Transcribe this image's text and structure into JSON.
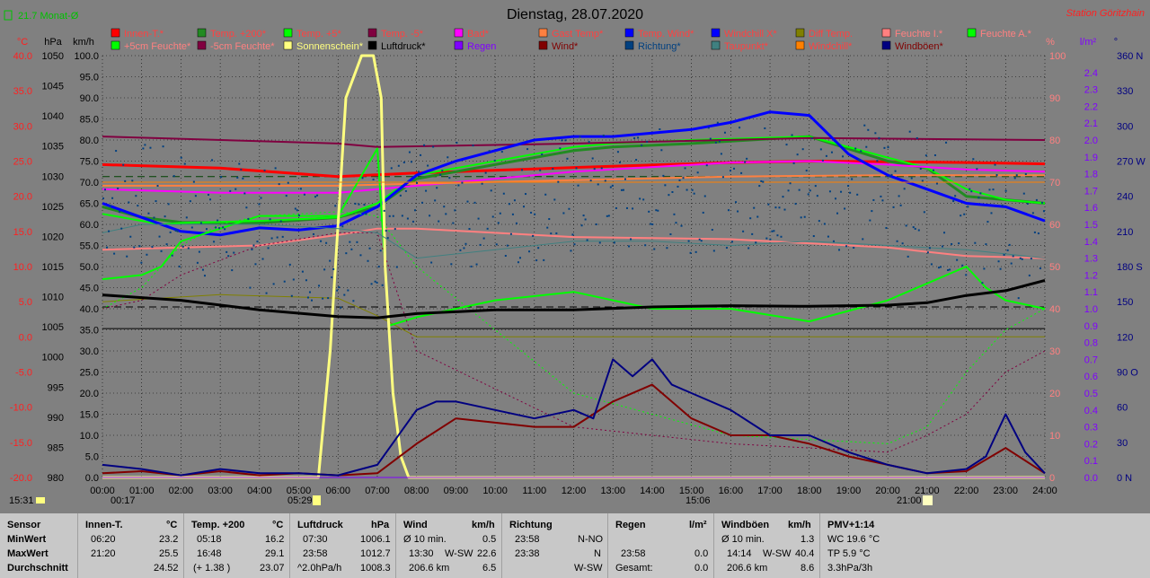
{
  "header": {
    "month_avg": "21.7 Monat-Ø",
    "title": "Dienstag, 28.07.2020",
    "station": "Station Göritzhain"
  },
  "colors": {
    "background": "#808080",
    "innen": "#ff0000",
    "temp200": "#228b22",
    "temp5": "#00ff00",
    "temp_minus5": "#800040",
    "bad": "#ff00ff",
    "gast": "#ff8040",
    "temp_wind": "#0000ff",
    "windchillx": "#0000ff",
    "diff": "#808000",
    "feuchte_i": "#ff8080",
    "feuchte_a": "#00ff00",
    "feuchte5": "#00ff00",
    "feuchte_minus5": "#800040",
    "sonne": "#ffff80",
    "luftdruck": "#000000",
    "regen": "#8000ff",
    "wind": "#800000",
    "richtung": "#004080",
    "taupunkt": "#408080",
    "windchill": "#ff8000",
    "windboeen": "#000080"
  },
  "legend": [
    {
      "label": "Innen-T.*",
      "color": "#ff0000",
      "text_color": "#ff4040"
    },
    {
      "label": "Temp. +200*",
      "color": "#228b22",
      "text_color": "#ff4040"
    },
    {
      "label": "Temp. +5*",
      "color": "#00ff00",
      "text_color": "#ff4040"
    },
    {
      "label": "Temp. -5*",
      "color": "#800040",
      "text_color": "#ff4040"
    },
    {
      "label": "Bad*",
      "color": "#ff00ff",
      "text_color": "#ff4040"
    },
    {
      "label": "Gast Temp*",
      "color": "#ff8040",
      "text_color": "#ff4040"
    },
    {
      "label": "Temp. Wind*",
      "color": "#0000ff",
      "text_color": "#ff4040"
    },
    {
      "label": "Windchill X*",
      "color": "#0000ff",
      "text_color": "#ff4040"
    },
    {
      "label": "Diff Temp.",
      "color": "#808000",
      "text_color": "#ff4040"
    },
    {
      "label": "Feuchte I.*",
      "color": "#ff8080",
      "text_color": "#ff8080"
    },
    {
      "label": "Feuchte A.*",
      "color": "#00ff00",
      "text_color": "#ff8080"
    },
    {
      "label": "+5cm Feuchte*",
      "color": "#00ff00",
      "text_color": "#ff8080"
    },
    {
      "label": "-5cm Feuchte*",
      "color": "#800040",
      "text_color": "#ff8080"
    },
    {
      "label": "Sonnenschein*",
      "color": "#ffff80",
      "text_color": "#ffff80"
    },
    {
      "label": "Luftdruck*",
      "color": "#000000",
      "text_color": "#000000"
    },
    {
      "label": "Regen",
      "color": "#8000ff",
      "text_color": "#8000ff"
    },
    {
      "label": "Wind*",
      "color": "#800000",
      "text_color": "#800000"
    },
    {
      "label": "Richtung*",
      "color": "#004080",
      "text_color": "#004080"
    },
    {
      "label": "Taupunkt*",
      "color": "#408080",
      "text_color": "#ff4040"
    },
    {
      "label": "Windchill*",
      "color": "#ff8000",
      "text_color": "#ff4040"
    },
    {
      "label": "Windböen*",
      "color": "#000080",
      "text_color": "#800000"
    }
  ],
  "chart_data": {
    "type": "line",
    "title": "Dienstag, 28.07.2020",
    "x_ticks": [
      "00:00",
      "01:00",
      "02:00",
      "03:00",
      "04:00",
      "05:00",
      "06:00",
      "07:00",
      "08:00",
      "09:00",
      "10:00",
      "11:00",
      "12:00",
      "13:00",
      "14:00",
      "15:00",
      "16:00",
      "17:00",
      "18:00",
      "19:00",
      "20:00",
      "21:00",
      "22:00",
      "23:00",
      "24:00"
    ],
    "xlim": [
      0,
      24
    ],
    "axes": {
      "temp": {
        "unit": "°C",
        "ylim": [
          -20,
          40
        ],
        "ticks": [
          "40.0",
          "35.0",
          "30.0",
          "25.0",
          "20.0",
          "15.0",
          "10.0",
          "5.0",
          "0.0",
          "-5.0",
          "-10.0",
          "-15.0",
          "-20.0"
        ]
      },
      "hpa": {
        "unit": "hPa",
        "ylim": [
          980,
          1050
        ],
        "ticks": [
          "1050",
          "1045",
          "1040",
          "1035",
          "1030",
          "1025",
          "1020",
          "1015",
          "1010",
          "1005",
          "1000",
          "995",
          "990",
          "985",
          "980"
        ]
      },
      "kmh": {
        "unit": "km/h",
        "ylim": [
          0,
          100
        ],
        "ticks": [
          "100.0",
          "95.0",
          "90.0",
          "85.0",
          "80.0",
          "75.0",
          "70.0",
          "65.0",
          "60.0",
          "55.0",
          "50.0",
          "45.0",
          "40.0",
          "35.0",
          "30.0",
          "25.0",
          "20.0",
          "15.0",
          "10.0",
          "5.0",
          "0.0"
        ]
      },
      "pct": {
        "unit": "%",
        "ylim": [
          0,
          100
        ],
        "ticks": [
          "100",
          "90",
          "80",
          "70",
          "60",
          "50",
          "40",
          "30",
          "20",
          "10",
          "0"
        ]
      },
      "rain": {
        "unit": "l/m²",
        "ylim": [
          0,
          2.5
        ],
        "ticks": [
          "2.4",
          "2.3",
          "2.2",
          "2.1",
          "2.0",
          "1.9",
          "1.8",
          "1.7",
          "1.6",
          "1.5",
          "1.4",
          "1.3",
          "1.2",
          "1.1",
          "1.0",
          "0.9",
          "0.8",
          "0.7",
          "0.6",
          "0.5",
          "0.4",
          "0.3",
          "0.2",
          "0.1",
          "0.0"
        ]
      },
      "dir": {
        "unit": "°",
        "ylim": [
          0,
          360
        ],
        "ticks": [
          "360 N",
          "330",
          "300",
          "270 W",
          "240",
          "210",
          "180 S",
          "150",
          "120",
          "90 O",
          "60",
          "30",
          "0 N"
        ]
      }
    },
    "series": [
      {
        "name": "Innen-T.*",
        "axis": "temp",
        "width": 3,
        "x": [
          0,
          3,
          6,
          8,
          12,
          16,
          18,
          20,
          22,
          24
        ],
        "y": [
          24.5,
          24,
          22.8,
          23.3,
          24.1,
          24.8,
          25.0,
          24.9,
          24.8,
          24.6
        ]
      },
      {
        "name": "Temp. +200*",
        "axis": "temp",
        "width": 3,
        "x": [
          0,
          1,
          2,
          4,
          6,
          7,
          8,
          10,
          12,
          13,
          15,
          18,
          20,
          21,
          22,
          24
        ],
        "y": [
          18.5,
          17,
          16.3,
          16.2,
          17,
          18.5,
          22.5,
          24.5,
          26.5,
          27,
          27.5,
          28.5,
          25,
          24,
          20,
          19
        ]
      },
      {
        "name": "Temp. +5*",
        "axis": "temp",
        "width": 2,
        "x": [
          0,
          1,
          1.5,
          2,
          4,
          6,
          7,
          8,
          10,
          12,
          13,
          15,
          18,
          20,
          21,
          22,
          23,
          24
        ],
        "y": [
          17.5,
          16.5,
          16,
          16.2,
          16.5,
          17,
          19,
          23,
          25,
          27,
          27.5,
          28,
          28.5,
          25.5,
          24,
          21,
          19.5,
          19
        ]
      },
      {
        "name": "Temp. -5*",
        "axis": "temp",
        "width": 2,
        "x": [
          0,
          6,
          7,
          12,
          18,
          24
        ],
        "y": [
          28.5,
          27.5,
          27,
          27.5,
          28.3,
          28.0
        ]
      },
      {
        "name": "Bad*",
        "axis": "temp",
        "width": 2,
        "x": [
          0,
          3,
          6,
          8,
          12,
          16,
          18,
          20,
          22,
          24
        ],
        "y": [
          21,
          20.5,
          20.5,
          21.5,
          23.5,
          24.8,
          25,
          24.5,
          23.8,
          23.5
        ]
      },
      {
        "name": "Gast Temp*",
        "axis": "temp",
        "width": 2,
        "x": [
          0,
          6,
          8,
          12,
          16,
          20,
          24
        ],
        "y": [
          21.5,
          21.5,
          21.8,
          22.3,
          22.8,
          23.0,
          23.0
        ]
      },
      {
        "name": "Temp. Wind*",
        "axis": "temp",
        "width": 3,
        "x": [
          0,
          1,
          2,
          3,
          4,
          5,
          6,
          7,
          8,
          9,
          10,
          11,
          12,
          13,
          14,
          15,
          16,
          17,
          18,
          19,
          20,
          21,
          22,
          23,
          24
        ],
        "y": [
          19,
          17,
          15,
          14.5,
          15.5,
          15.2,
          15.8,
          18.5,
          23,
          25,
          26.5,
          28,
          28.5,
          28.5,
          29,
          29.5,
          30.5,
          32,
          31.5,
          26,
          23,
          21,
          19,
          18.5,
          16.5
        ]
      },
      {
        "name": "Diff Temp.",
        "axis": "temp",
        "width": 1,
        "x": [
          0,
          3,
          6,
          7,
          8,
          24
        ],
        "y": [
          5,
          6,
          5.5,
          3,
          0,
          0
        ]
      },
      {
        "name": "Feuchte I.*",
        "axis": "pct",
        "width": 2,
        "x": [
          0,
          2,
          4,
          6,
          7,
          8,
          10,
          12,
          16,
          20,
          22,
          24
        ],
        "y": [
          54,
          54.5,
          55,
          57.5,
          59,
          59,
          58,
          57,
          56.5,
          54.5,
          52.5,
          52
        ]
      },
      {
        "name": "Feuchte A.*",
        "axis": "pct",
        "width": 2,
        "x": [
          0,
          1,
          1.5,
          2,
          4,
          6,
          7,
          7.3,
          8,
          10,
          12,
          14,
          16,
          18,
          20,
          21,
          22,
          22.5,
          23,
          24
        ],
        "y": [
          47,
          48,
          50,
          56,
          62,
          62,
          78,
          36,
          38,
          42,
          44,
          40,
          40,
          37,
          42,
          46,
          50,
          45,
          42,
          40
        ]
      },
      {
        "name": "+5cm Feuchte*",
        "axis": "pct",
        "width": 1,
        "x": [
          0,
          1,
          2,
          3,
          4,
          6,
          7,
          8,
          12,
          16,
          20,
          21,
          22,
          23,
          24
        ],
        "y": [
          40,
          45,
          55,
          60,
          62,
          63,
          62,
          50,
          20,
          10,
          8,
          12,
          25,
          35,
          40
        ]
      },
      {
        "name": "-5cm Feuchte*",
        "axis": "pct",
        "width": 1,
        "x": [
          0,
          1,
          2,
          4,
          6,
          7,
          8,
          12,
          16,
          20,
          21,
          22,
          23,
          24
        ],
        "y": [
          40,
          42,
          48,
          55,
          58,
          58,
          30,
          12,
          8,
          6,
          10,
          15,
          25,
          30
        ]
      },
      {
        "name": "Sonnenschein*",
        "axis": "kmh",
        "width": 3,
        "x": [
          0,
          5.5,
          5.8,
          6.2,
          6.6,
          6.9,
          7.1,
          7.2,
          7.4,
          7.6,
          7.8,
          24
        ],
        "y": [
          0,
          0,
          30,
          90,
          100,
          100,
          90,
          50,
          20,
          5,
          0,
          0
        ]
      },
      {
        "name": "Luftdruck*",
        "axis": "hpa",
        "width": 3,
        "x": [
          0,
          2,
          4,
          6,
          7,
          8,
          10,
          12,
          14,
          16,
          18,
          20,
          21,
          22,
          23,
          24
        ],
        "y": [
          1010.3,
          1009.4,
          1007.8,
          1006.7,
          1006.5,
          1007.2,
          1007.8,
          1007.8,
          1008.3,
          1008.5,
          1008.4,
          1008.6,
          1009.0,
          1010.2,
          1011,
          1012.7
        ]
      },
      {
        "name": "Regen",
        "axis": "rain",
        "width": 1,
        "x": [
          0,
          24
        ],
        "y": [
          0,
          0
        ]
      },
      {
        "name": "Wind*",
        "axis": "kmh",
        "width": 2,
        "x": [
          0,
          1,
          2,
          3,
          4,
          5,
          6,
          7,
          8,
          9,
          10,
          11,
          12,
          13,
          14,
          15,
          16,
          17,
          18,
          19,
          20,
          21,
          22,
          23,
          24
        ],
        "y": [
          1,
          1.5,
          0.5,
          1.5,
          0.5,
          1,
          0.5,
          1,
          8,
          14,
          13,
          12,
          12,
          18,
          22,
          14,
          10,
          10,
          8,
          5,
          3,
          1,
          1.5,
          7,
          1
        ]
      },
      {
        "name": "Richtung*",
        "axis": "dir",
        "width": 1,
        "x": [
          0,
          6,
          8,
          12,
          16,
          20,
          24
        ],
        "y": [
          240,
          200,
          230,
          240,
          250,
          250,
          200
        ]
      },
      {
        "name": "Taupunkt*",
        "axis": "pct",
        "width": 1,
        "x": [
          0,
          1,
          2,
          4,
          6,
          7,
          8,
          10,
          12,
          14,
          16,
          18,
          20,
          22,
          24
        ],
        "y": [
          58,
          60,
          60,
          60,
          59,
          58,
          52,
          54,
          56,
          56,
          55,
          56,
          55,
          54,
          52
        ]
      },
      {
        "name": "Windchill*",
        "axis": "temp",
        "width": 1,
        "x": [
          0,
          24
        ],
        "y": [
          22,
          22
        ]
      },
      {
        "name": "Windböen*",
        "axis": "kmh",
        "width": 2,
        "x": [
          0,
          1,
          2,
          3,
          4,
          5,
          6,
          7,
          8,
          8.5,
          9,
          10,
          11,
          12,
          12.5,
          13,
          13.5,
          14,
          14.5,
          15,
          16,
          17,
          18,
          19,
          20,
          21,
          22,
          22.5,
          23,
          23.5,
          24
        ],
        "y": [
          3,
          2,
          0.5,
          2,
          1,
          1,
          0.5,
          3,
          16,
          18,
          18,
          16,
          14,
          16,
          14,
          28,
          24,
          28,
          22,
          20,
          16,
          10,
          10,
          6,
          3,
          1,
          2,
          5,
          15,
          6,
          1
        ]
      }
    ],
    "hlines": [
      {
        "axis": "hpa",
        "value": 1008.3,
        "color": "#000000",
        "style": "dashed"
      },
      {
        "axis": "hpa",
        "value": 1004.7,
        "color": "#000000",
        "style": "solid"
      },
      {
        "axis": "temp",
        "value": 22.8,
        "color": "#004000",
        "style": "dashed"
      }
    ]
  },
  "markers": {
    "start_time": "15:31",
    "sunrise": "05:29",
    "sunset": "21:00",
    "moonrise": "00:17",
    "moonset": "15:06"
  },
  "stats": {
    "row_labels": [
      "Sensor",
      "MinWert",
      "MaxWert",
      "Durchschnitt"
    ],
    "innen": {
      "title": "Innen-T.",
      "unit": "°C",
      "min_time": "06:20",
      "min": "23.2",
      "max_time": "21:20",
      "max": "25.5",
      "avg": "24.52"
    },
    "temp200": {
      "title": "Temp. +200",
      "unit": "°C",
      "min_time": "05:18",
      "min": "16.2",
      "max_time": "16:48",
      "max": "29.1",
      "avg_note": "(+ 1.38 )",
      "avg": "23.07"
    },
    "luftdruck": {
      "title": "Luftdruck",
      "unit": "hPa",
      "min_time": "07:30",
      "min": "1006.1",
      "max_time": "23:58",
      "max": "1012.7",
      "avg_note": "^2.0hPa/h",
      "avg": "1008.3"
    },
    "wind": {
      "title": "Wind",
      "unit": "km/h",
      "min_time": "Ø 10 min.",
      "min": "0.5",
      "max_time": "13:30",
      "max_dir": "W-SW",
      "max": "22.6",
      "avg_note": "206.6 km",
      "avg": "6.5"
    },
    "richtung": {
      "title": "Richtung",
      "unit": "",
      "min_time": "23:58",
      "min": "N-NO",
      "max_time": "23:38",
      "max": "N",
      "avg": "W-SW"
    },
    "regen": {
      "title": "Regen",
      "unit": "l/m²",
      "max_time": "23:58",
      "max": "0.0",
      "avg_note": "Gesamt:",
      "avg": "0.0"
    },
    "boeen": {
      "title": "Windböen",
      "unit": "km/h",
      "min_time": "Ø 10 min.",
      "min": "1.3",
      "max_time": "14:14",
      "max_dir": "W-SW",
      "max": "40.4",
      "avg_note": "206.6 km",
      "avg": "8.6"
    },
    "pmv": {
      "title": "PMV+1:14",
      "line1": "WC 19.6 °C",
      "line2": "TP 5.9 °C",
      "line3": "3.3hPa/3h"
    }
  }
}
